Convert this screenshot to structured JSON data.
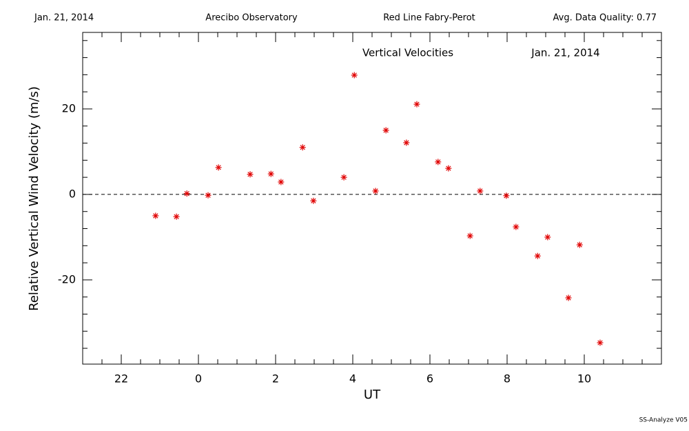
{
  "header": {
    "date": "Jan. 21, 2014",
    "site": "Arecibo Observatory",
    "instrument": "Red Line Fabry-Perot",
    "quality": "Avg. Data Quality: 0.77"
  },
  "footer": "SS-Analyze V05",
  "chart_data": {
    "type": "scatter",
    "title": "Vertical Velocities",
    "subtitle": "Jan. 21, 2014",
    "x_label": "UT",
    "y_label": "Relative Vertical Wind Velocity (m/s)",
    "color": "#e00000",
    "marker": "asterisk",
    "x": [
      22.89,
      23.43,
      23.7,
      24.25,
      24.52,
      25.34,
      25.88,
      26.14,
      26.7,
      26.98,
      27.77,
      28.04,
      28.59,
      28.86,
      29.39,
      29.66,
      30.21,
      30.48,
      31.04,
      31.3,
      31.98,
      32.23,
      32.79,
      33.05,
      33.59,
      33.88,
      34.41
    ],
    "values": [
      -5.0,
      -5.2,
      0.2,
      -0.2,
      6.3,
      4.7,
      4.8,
      2.9,
      11.0,
      -1.5,
      4.0,
      27.9,
      0.8,
      15.0,
      12.1,
      21.1,
      7.6,
      6.1,
      -9.7,
      0.8,
      -0.3,
      -7.6,
      -14.4,
      -10.0,
      -24.2,
      -11.8,
      -34.7
    ],
    "xlim": [
      21,
      36
    ],
    "xticks": [
      22,
      {
        "value": 24,
        "label": "0"
      },
      {
        "value": 26,
        "label": "2"
      },
      {
        "value": 28,
        "label": "4"
      },
      {
        "value": 30,
        "label": "6"
      },
      {
        "value": 32,
        "label": "8"
      },
      {
        "value": 34,
        "label": "10"
      }
    ],
    "xminorticks": [
      21.5,
      22.5,
      23,
      23.5,
      24.5,
      25,
      25.5,
      26.5,
      27,
      27.5,
      28.5,
      29,
      29.5,
      30.5,
      31,
      31.5,
      32.5,
      33,
      33.5,
      34.5,
      35,
      35.5
    ],
    "ylim": [
      -39.7,
      37.9
    ],
    "yticks": [
      -20,
      0,
      20
    ],
    "yminorticks": [
      -36,
      -32,
      -28,
      -24,
      -16,
      -12,
      -8,
      -4,
      4,
      8,
      12,
      16,
      24,
      28,
      32,
      36
    ],
    "reference_line": 0
  }
}
